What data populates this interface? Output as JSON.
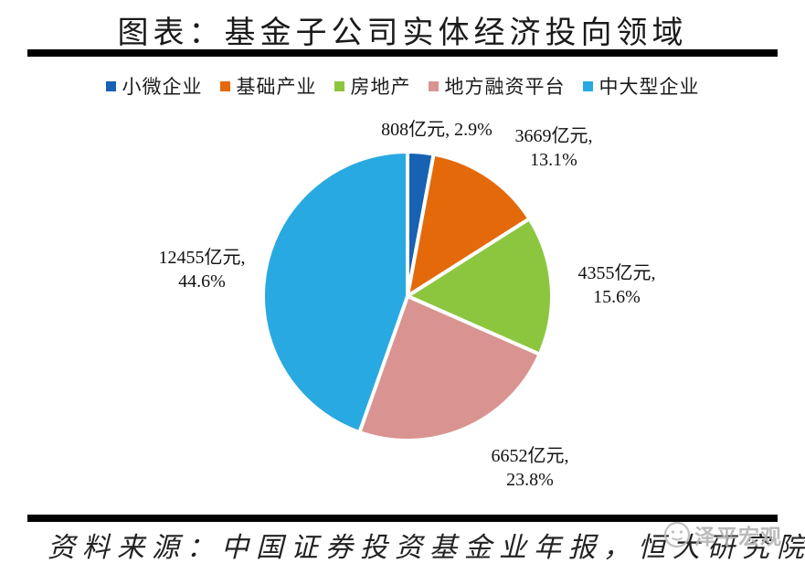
{
  "chart_data": {
    "type": "pie",
    "title": "图表：基金子公司实体经济投向领域",
    "unit": "亿元",
    "categories": [
      "小微企业",
      "基础产业",
      "房地产",
      "地方融资平台",
      "中大型企业"
    ],
    "values": [
      808,
      3669,
      4355,
      6652,
      12455
    ],
    "percents": [
      2.9,
      13.1,
      15.6,
      23.8,
      44.6
    ],
    "colors": [
      "#1762B2",
      "#E4690B",
      "#8CC63F",
      "#D99492",
      "#29A9E1"
    ],
    "labels": [
      {
        "line1": "808亿元, 2.9%",
        "line2": ""
      },
      {
        "line1": "3669亿元,",
        "line2": "13.1%"
      },
      {
        "line1": "4355亿元,",
        "line2": "15.6%"
      },
      {
        "line1": "6652亿元,",
        "line2": "23.8%"
      },
      {
        "line1": "12455亿元,",
        "line2": "44.6%"
      }
    ],
    "legend_position": "top",
    "start_angle": "12-oclock-clockwise",
    "slice_gap_color": "#ffffff"
  },
  "source": {
    "text": "资料来源：中国证券投资基金业年报，恒大研究院"
  },
  "watermark": {
    "text": "泽平宏观"
  }
}
